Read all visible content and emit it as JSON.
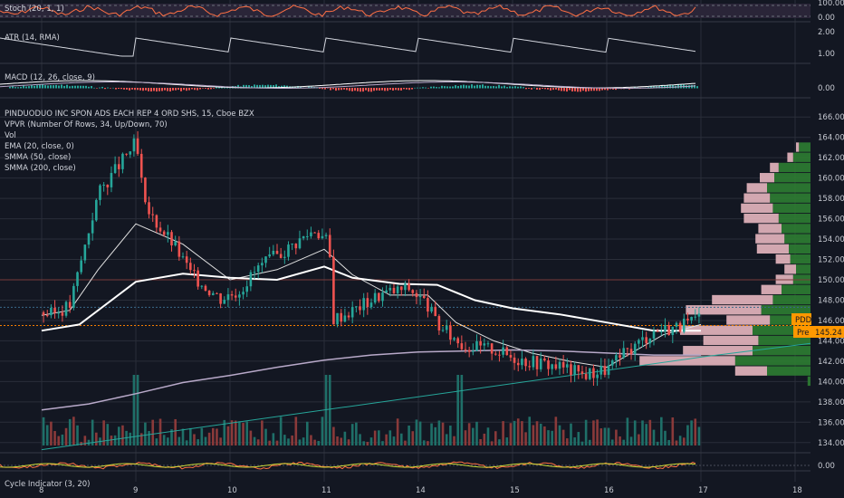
{
  "colors": {
    "background": "#131722",
    "grid": "#2a2e39",
    "up": "#26a69a",
    "down": "#ef5350",
    "ema20": "#e0e0e0",
    "smma50": "#ffffff",
    "smma200": "#b8a9c9",
    "trendline": "#26a69a",
    "profile_up": "#2e7d32",
    "profile_down": "#e8b7c0",
    "price_line": "#f57c00",
    "ticker_tag": "#ff9800"
  },
  "panels": {
    "stoch": {
      "label": "Stoch (20, 1, 1)",
      "ticks": [
        "100.00",
        "0.00"
      ]
    },
    "atr": {
      "label": "ATR (14, RMA)",
      "ticks": [
        "2.00",
        "1.00"
      ]
    },
    "macd": {
      "label": "MACD (12, 26, close, 9)",
      "ticks": [
        "0.00"
      ]
    },
    "main": {
      "title": "PINDUODUO INC SPON ADS EACH REP 4 ORD SHS, 15, Cboe BZX",
      "legend": [
        "VPVR (Number Of Rows, 34, Up/Down, 70)",
        "Vol",
        "EMA (20, close, 0)",
        "SMMA (50, close)",
        "SMMA (200, close)"
      ],
      "ticks": [
        "166.00",
        "164.00",
        "162.00",
        "160.00",
        "158.00",
        "156.00",
        "154.00",
        "152.00",
        "150.00",
        "148.00",
        "146.00",
        "144.00",
        "142.00",
        "140.00",
        "138.00",
        "136.00",
        "134.00"
      ]
    },
    "cycle": {
      "label": "Cycle Indicator (3, 20)",
      "ticks": [
        "0.00"
      ]
    }
  },
  "price_tags": {
    "ticker": "PDD",
    "pre_label": "Pre",
    "pre_value": "145.24"
  },
  "x_axis": {
    "labels": [
      "8",
      "9",
      "10",
      "11",
      "14",
      "15",
      "16",
      "17",
      "18"
    ]
  },
  "chart_data": {
    "type": "candlestick",
    "title": "PINDUODUO INC SPON ADS EACH REP 4 ORD SHS, 15, Cboe BZX",
    "x_categories": [
      "8",
      "9",
      "10",
      "11",
      "14",
      "15",
      "16",
      "17",
      "18"
    ],
    "ylim": [
      133,
      167
    ],
    "close_path": [
      [
        0,
        146.8
      ],
      [
        0.1,
        146.6
      ],
      [
        0.3,
        147.5
      ],
      [
        0.6,
        158.5
      ],
      [
        1.0,
        163.5
      ],
      [
        1.1,
        157.0
      ],
      [
        1.4,
        153.5
      ],
      [
        1.6,
        150.4
      ],
      [
        1.9,
        148.2
      ],
      [
        2.1,
        149.0
      ],
      [
        2.3,
        151.2
      ],
      [
        2.6,
        153.0
      ],
      [
        2.9,
        155.0
      ],
      [
        3.05,
        153.6
      ],
      [
        3.1,
        146.2
      ],
      [
        3.3,
        147.0
      ],
      [
        3.6,
        148.6
      ],
      [
        3.9,
        149.2
      ],
      [
        4.1,
        147.5
      ],
      [
        4.2,
        145.5
      ],
      [
        4.5,
        143.5
      ],
      [
        4.8,
        143.2
      ],
      [
        5.0,
        142.4
      ],
      [
        5.2,
        142.0
      ],
      [
        5.5,
        141.5
      ],
      [
        5.75,
        140.7
      ],
      [
        6.0,
        141.2
      ],
      [
        6.2,
        142.8
      ],
      [
        6.5,
        145.0
      ],
      [
        6.8,
        145.5
      ],
      [
        7.0,
        146.1
      ]
    ],
    "series": [
      {
        "name": "EMA (20, close, 0)",
        "points": [
          [
            0,
            146.5
          ],
          [
            0.3,
            147.0
          ],
          [
            0.6,
            151.0
          ],
          [
            1.0,
            155.5
          ],
          [
            1.5,
            153.5
          ],
          [
            2.0,
            150.0
          ],
          [
            2.5,
            151.0
          ],
          [
            3.0,
            153.0
          ],
          [
            3.3,
            150.5
          ],
          [
            3.7,
            148.5
          ],
          [
            4.1,
            148.5
          ],
          [
            4.4,
            145.8
          ],
          [
            4.8,
            144.0
          ],
          [
            5.2,
            142.8
          ],
          [
            5.6,
            142.0
          ],
          [
            6.0,
            141.4
          ],
          [
            6.3,
            143.0
          ],
          [
            6.6,
            144.6
          ],
          [
            7.0,
            145.6
          ]
        ]
      },
      {
        "name": "SMMA (50, close)",
        "points": [
          [
            0,
            145.0
          ],
          [
            0.4,
            145.6
          ],
          [
            1.0,
            149.8
          ],
          [
            1.5,
            150.6
          ],
          [
            2.0,
            150.2
          ],
          [
            2.5,
            150.0
          ],
          [
            3.0,
            151.3
          ],
          [
            3.3,
            150.2
          ],
          [
            3.8,
            149.6
          ],
          [
            4.2,
            149.5
          ],
          [
            4.6,
            148.0
          ],
          [
            5.0,
            147.2
          ],
          [
            5.5,
            146.6
          ],
          [
            6.0,
            145.8
          ],
          [
            6.5,
            145.0
          ],
          [
            7.0,
            145.0
          ]
        ]
      },
      {
        "name": "SMMA (200, close)",
        "points": [
          [
            0,
            137.2
          ],
          [
            0.5,
            137.8
          ],
          [
            1.0,
            138.8
          ],
          [
            1.5,
            139.9
          ],
          [
            2.0,
            140.6
          ],
          [
            2.5,
            141.4
          ],
          [
            3.0,
            142.1
          ],
          [
            3.5,
            142.6
          ],
          [
            4.0,
            142.9
          ],
          [
            4.5,
            143.0
          ],
          [
            5.0,
            143.1
          ],
          [
            5.5,
            143.0
          ],
          [
            6.0,
            142.8
          ],
          [
            6.5,
            142.6
          ],
          [
            7.0,
            142.6
          ]
        ]
      },
      {
        "name": "Trendline",
        "points": [
          [
            0,
            133.3
          ],
          [
            7.0,
            142.4
          ],
          [
            8.3,
            143.9
          ]
        ]
      }
    ],
    "last_price": 145.24,
    "reference_lines": [
      150.0,
      145.5,
      147.3
    ],
    "volume_spikes": [
      1.0,
      3.05,
      4.45
    ],
    "volume_profile_rows": [
      {
        "price": 163.0,
        "up": 0.08,
        "down": 0.02
      },
      {
        "price": 162.0,
        "up": 0.12,
        "down": 0.04
      },
      {
        "price": 161.0,
        "up": 0.22,
        "down": 0.06
      },
      {
        "price": 160.0,
        "up": 0.25,
        "down": 0.1
      },
      {
        "price": 159.0,
        "up": 0.3,
        "down": 0.14
      },
      {
        "price": 158.0,
        "up": 0.28,
        "down": 0.18
      },
      {
        "price": 157.0,
        "up": 0.26,
        "down": 0.22
      },
      {
        "price": 156.0,
        "up": 0.22,
        "down": 0.24
      },
      {
        "price": 155.0,
        "up": 0.2,
        "down": 0.16
      },
      {
        "price": 154.0,
        "up": 0.18,
        "down": 0.2
      },
      {
        "price": 153.0,
        "up": 0.15,
        "down": 0.22
      },
      {
        "price": 152.0,
        "up": 0.14,
        "down": 0.1
      },
      {
        "price": 151.0,
        "up": 0.1,
        "down": 0.08
      },
      {
        "price": 150.0,
        "up": 0.12,
        "down": 0.12
      },
      {
        "price": 149.0,
        "up": 0.2,
        "down": 0.14
      },
      {
        "price": 148.0,
        "up": 0.26,
        "down": 0.42
      },
      {
        "price": 147.0,
        "up": 0.34,
        "down": 0.52
      },
      {
        "price": 146.0,
        "up": 0.28,
        "down": 0.3
      },
      {
        "price": 145.0,
        "up": 0.4,
        "down": 0.5
      },
      {
        "price": 144.0,
        "up": 0.36,
        "down": 0.38
      },
      {
        "price": 143.0,
        "up": 0.4,
        "down": 0.48
      },
      {
        "price": 142.0,
        "up": 0.52,
        "down": 0.66
      },
      {
        "price": 141.0,
        "up": 0.3,
        "down": 0.22
      },
      {
        "price": 140.0,
        "up": 0.02,
        "down": 0.0
      }
    ]
  }
}
